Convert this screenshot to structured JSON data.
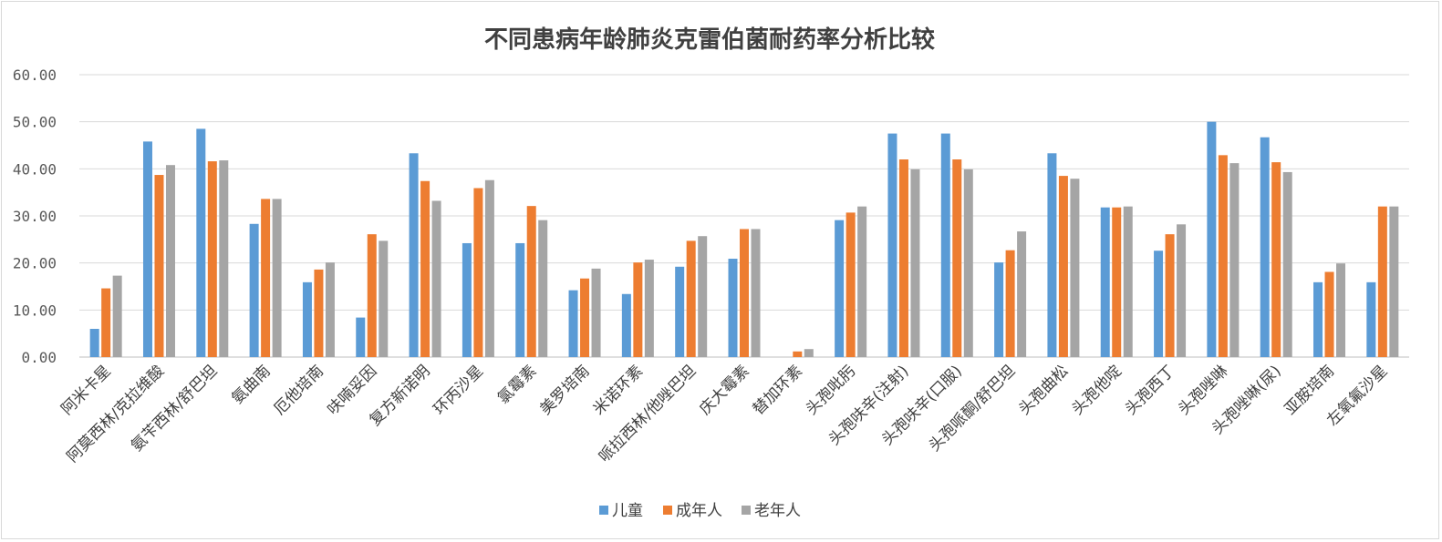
{
  "chart_data": {
    "type": "bar",
    "title": "不同患病年龄肺炎克雷伯菌耐药率分析比较",
    "xlabel": "",
    "ylabel": "",
    "ylim": [
      0,
      60
    ],
    "yticks": [
      "0.00",
      "10.00",
      "20.00",
      "30.00",
      "40.00",
      "50.00",
      "60.00"
    ],
    "grid": true,
    "legend_position": "bottom",
    "categories": [
      "阿米卡星",
      "阿莫西林/克拉维酸",
      "氨苄西林/舒巴坦",
      "氨曲南",
      "厄他培南",
      "呋喃妥因",
      "复方新诺明",
      "环丙沙星",
      "氯霉素",
      "美罗培南",
      "米诺环素",
      "哌拉西林/他唑巴坦",
      "庆大霉素",
      "替加环素",
      "头孢吡肟",
      "头孢呋辛(注射)",
      "头孢呋辛(口服)",
      "头孢哌酮/舒巴坦",
      "头孢曲松",
      "头孢他啶",
      "头孢西丁",
      "头孢唑啉",
      "头孢唑啉(尿)",
      "亚胺培南",
      "左氧氟沙星"
    ],
    "series": [
      {
        "name": "儿童",
        "color": "#5b9bd5",
        "values": [
          6.0,
          45.8,
          48.5,
          28.3,
          15.9,
          8.4,
          43.3,
          24.2,
          24.2,
          14.2,
          13.4,
          19.2,
          20.9,
          0.0,
          29.1,
          47.5,
          47.5,
          20.1,
          43.3,
          31.8,
          22.6,
          50.0,
          46.7,
          15.9,
          15.9
        ]
      },
      {
        "name": "成年人",
        "color": "#ed7d31",
        "values": [
          14.6,
          38.7,
          41.6,
          33.6,
          18.6,
          26.1,
          37.4,
          35.9,
          32.1,
          16.7,
          20.1,
          24.7,
          27.2,
          1.2,
          30.7,
          42.0,
          42.0,
          22.7,
          38.5,
          31.8,
          26.1,
          42.9,
          41.4,
          18.1,
          32.0
        ]
      },
      {
        "name": "老年人",
        "color": "#a5a5a5",
        "values": [
          17.3,
          40.8,
          41.8,
          33.6,
          20.1,
          24.7,
          33.2,
          37.6,
          29.1,
          18.8,
          20.7,
          25.7,
          27.2,
          1.7,
          32.0,
          39.9,
          39.9,
          26.7,
          37.9,
          32.0,
          28.2,
          41.2,
          39.3,
          19.9,
          32.0
        ]
      }
    ]
  }
}
